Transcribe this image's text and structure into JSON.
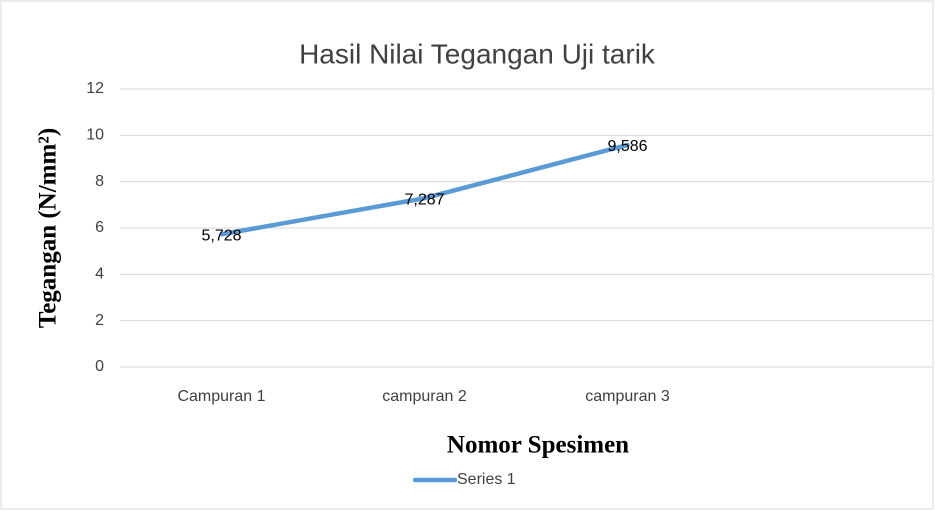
{
  "chart_data": {
    "type": "line",
    "title": "Hasil Nilai Tegangan Uji tarik",
    "y_label": "Tegangan (N/mm²)",
    "x_label": "Nomor Spesimen",
    "categories": [
      "Campuran 1",
      "campuran 2",
      "campuran 3",
      null
    ],
    "series": [
      {
        "name": "Series 1",
        "color": "#5b9bd5",
        "values": [
          5.728,
          7.287,
          9.586,
          null
        ],
        "value_labels": [
          "5,728",
          "7,287",
          "9,586",
          null
        ]
      }
    ],
    "ylim": [
      0,
      12
    ],
    "yticks": [
      0,
      2,
      4,
      6,
      8,
      10,
      12
    ],
    "grid": true,
    "legend": "bottom"
  }
}
